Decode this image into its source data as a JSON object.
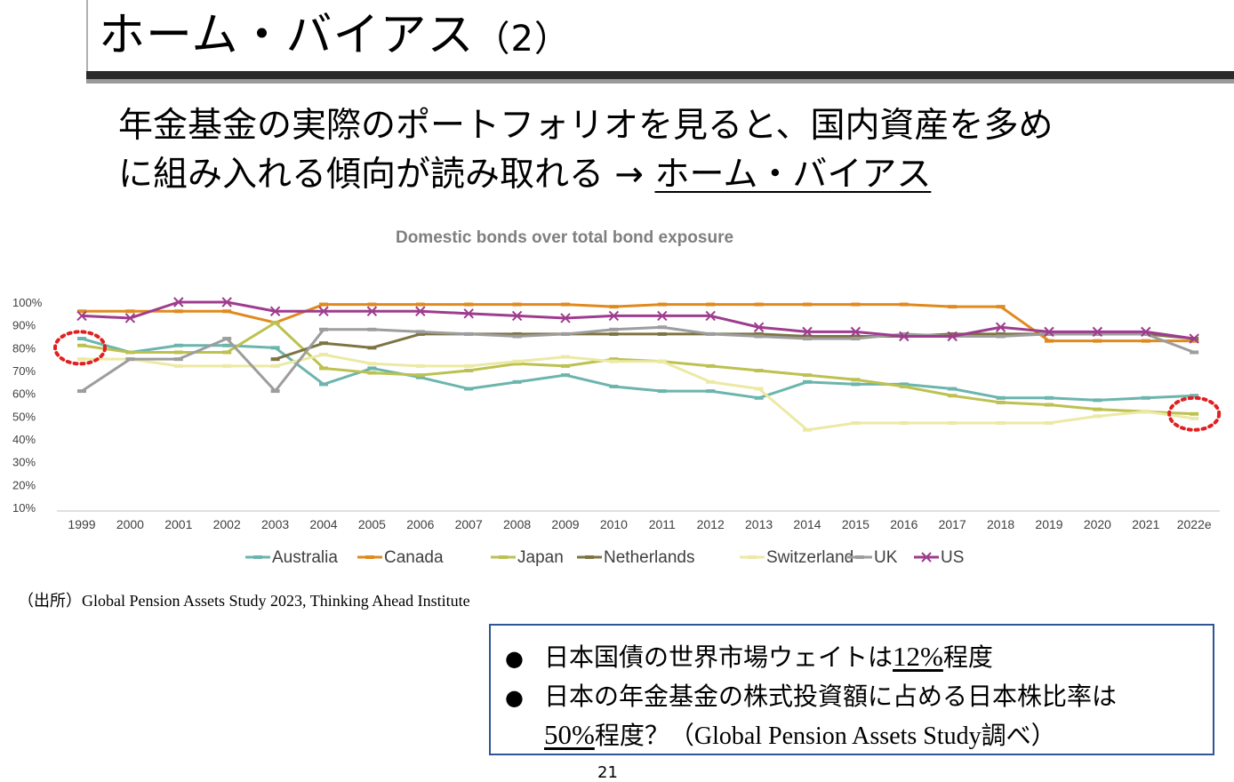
{
  "title": {
    "main": "ホーム・バイアス",
    "paren": "（2）"
  },
  "lead": {
    "line1": "年金基金の実際のポートフォリオを見ると、国内資産を多め",
    "line2_pre": "に組み入れる傾向が読み取れる → ",
    "line2_emph": "ホーム・バイアス"
  },
  "source": "（出所）Global Pension Assets Study 2023, Thinking Ahead Institute",
  "notes": {
    "bullet": "●",
    "item1_pre": "日本国債の世界市場ウェイトは",
    "item1_num": "12%",
    "item1_post": "程度",
    "item2_line1": "日本の年金基金の株式投資額に占める日本株比率は",
    "item2_num": "50%",
    "item2_mid": "程度？",
    "item2_src": "（Global Pension Assets Study調べ）"
  },
  "page_number": "21",
  "colors": {
    "Australia": "#6bb5ad",
    "Canada": "#e08a1e",
    "Japan": "#bcc150",
    "Netherlands": "#7d7444",
    "Switzerland": "#ece9a6",
    "UK": "#9d9d9d",
    "US": "#9e3c8e",
    "axis": "#bfbfbf",
    "text": "#404040",
    "title": "#7f7f7f",
    "highlight": "#e02020"
  },
  "chart_data": {
    "type": "line",
    "title": "Domestic bonds over total bond exposure",
    "xlabel": "",
    "ylabel": "",
    "ylim": [
      10,
      100
    ],
    "yticks": [
      "10%",
      "20%",
      "30%",
      "40%",
      "50%",
      "60%",
      "70%",
      "80%",
      "90%",
      "100%"
    ],
    "categories": [
      "1999",
      "2000",
      "2001",
      "2002",
      "2003",
      "2004",
      "2005",
      "2006",
      "2007",
      "2008",
      "2009",
      "2010",
      "2011",
      "2012",
      "2013",
      "2014",
      "2015",
      "2016",
      "2017",
      "2018",
      "2019",
      "2020",
      "2021",
      "2022e"
    ],
    "grid": false,
    "legend_position": "bottom",
    "series": [
      {
        "name": "Australia",
        "marker": "dash",
        "values": [
          84,
          78,
          81,
          81,
          80,
          64,
          71,
          67,
          62,
          65,
          68,
          63,
          61,
          61,
          58,
          65,
          64,
          64,
          62,
          58,
          58,
          57,
          58,
          59
        ]
      },
      {
        "name": "Canada",
        "marker": "dash",
        "values": [
          96,
          96,
          96,
          96,
          91,
          99,
          99,
          99,
          99,
          99,
          99,
          98,
          99,
          99,
          99,
          99,
          99,
          99,
          98,
          98,
          83,
          83,
          83,
          83
        ]
      },
      {
        "name": "Japan",
        "marker": "dash",
        "values": [
          81,
          78,
          78,
          78,
          91,
          71,
          69,
          68,
          70,
          73,
          72,
          75,
          74,
          72,
          70,
          68,
          66,
          63,
          59,
          56,
          55,
          53,
          52,
          51
        ]
      },
      {
        "name": "Netherlands",
        "marker": "dash",
        "values": [
          null,
          null,
          null,
          null,
          75,
          82,
          80,
          86,
          86,
          86,
          86,
          86,
          86,
          86,
          86,
          85,
          85,
          85,
          86,
          86,
          86,
          86,
          86,
          84
        ]
      },
      {
        "name": "Switzerland",
        "marker": "dash",
        "values": [
          75,
          75,
          72,
          72,
          72,
          77,
          73,
          72,
          72,
          74,
          76,
          74,
          74,
          65,
          62,
          44,
          47,
          47,
          47,
          47,
          47,
          50,
          52,
          49
        ]
      },
      {
        "name": "UK",
        "marker": "dash",
        "values": [
          61,
          75,
          75,
          84,
          61,
          88,
          88,
          87,
          86,
          85,
          86,
          88,
          89,
          86,
          85,
          84,
          84,
          86,
          85,
          85,
          86,
          86,
          86,
          78
        ]
      },
      {
        "name": "US",
        "marker": "x",
        "values": [
          94,
          93,
          100,
          100,
          96,
          96,
          96,
          96,
          95,
          94,
          93,
          94,
          94,
          94,
          89,
          87,
          87,
          85,
          85,
          89,
          87,
          87,
          87,
          84
        ]
      }
    ],
    "highlights": [
      {
        "category": "1999"
      },
      {
        "category": "2022e"
      }
    ]
  }
}
